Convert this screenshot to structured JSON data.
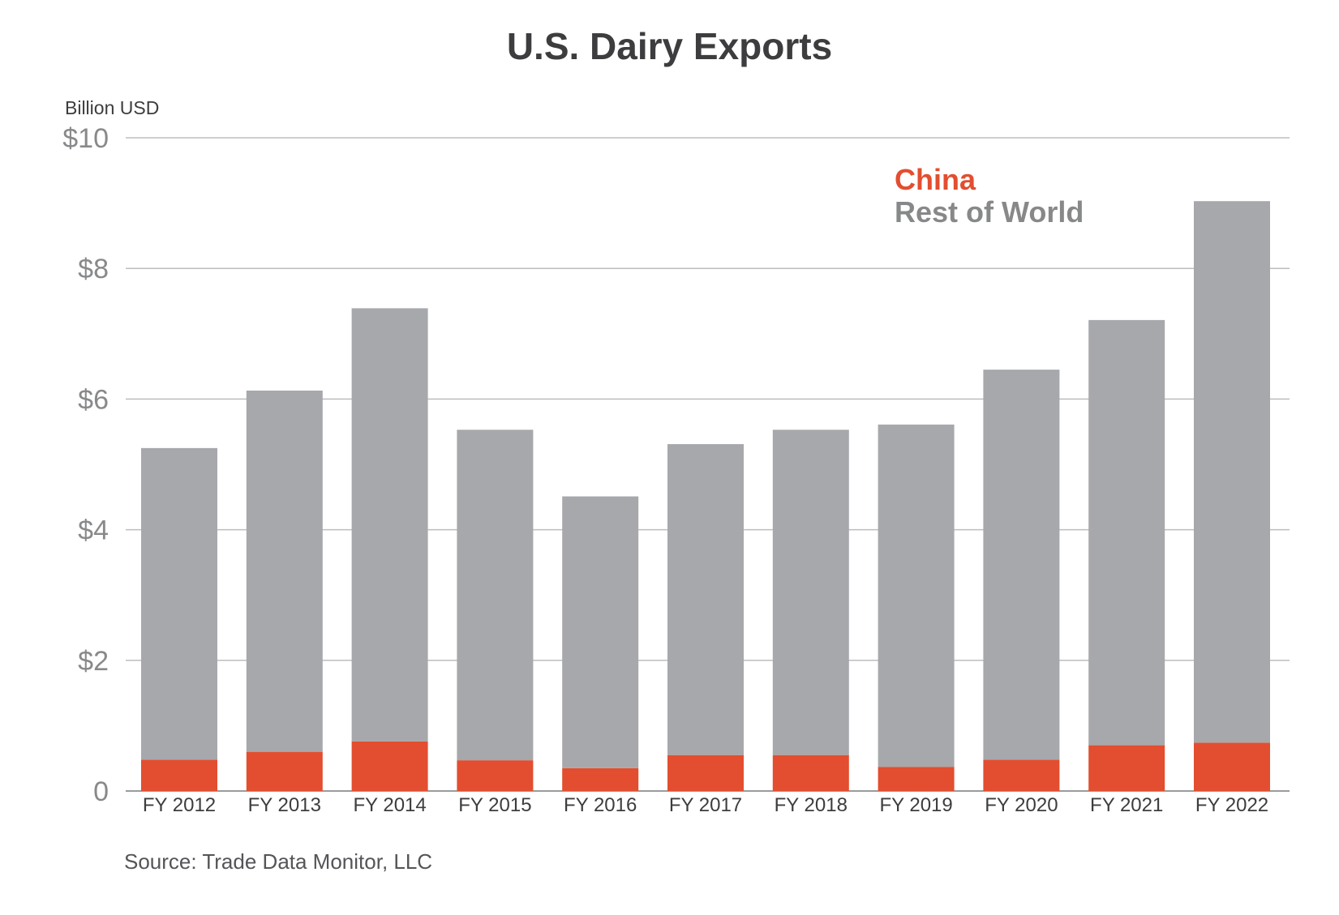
{
  "chart_data": {
    "type": "bar",
    "stacked": true,
    "title": "U.S. Dairy Exports",
    "ylabel": "Billion USD",
    "source": "Source: Trade Data Monitor, LLC",
    "categories": [
      "FY 2012",
      "FY 2013",
      "FY 2014",
      "FY 2015",
      "FY 2016",
      "FY 2017",
      "FY 2018",
      "FY 2019",
      "FY 2020",
      "FY 2021",
      "FY 2022"
    ],
    "series": [
      {
        "name": "China",
        "color": "#e24e2f",
        "values": [
          0.48,
          0.6,
          0.76,
          0.47,
          0.35,
          0.55,
          0.55,
          0.37,
          0.48,
          0.7,
          0.74
        ]
      },
      {
        "name": "Rest of World",
        "color": "#a7a8ab",
        "values": [
          4.77,
          5.53,
          6.63,
          5.06,
          4.16,
          4.76,
          4.98,
          5.24,
          5.97,
          6.51,
          8.29
        ]
      }
    ],
    "yticks": [
      {
        "value": 0,
        "label": "0"
      },
      {
        "value": 2,
        "label": "$2"
      },
      {
        "value": 4,
        "label": "$4"
      },
      {
        "value": 6,
        "label": "$6"
      },
      {
        "value": 8,
        "label": "$8"
      },
      {
        "value": 10,
        "label": "$10"
      }
    ],
    "ylim": [
      0,
      10
    ],
    "grid": true,
    "legend_position": "top-right"
  }
}
